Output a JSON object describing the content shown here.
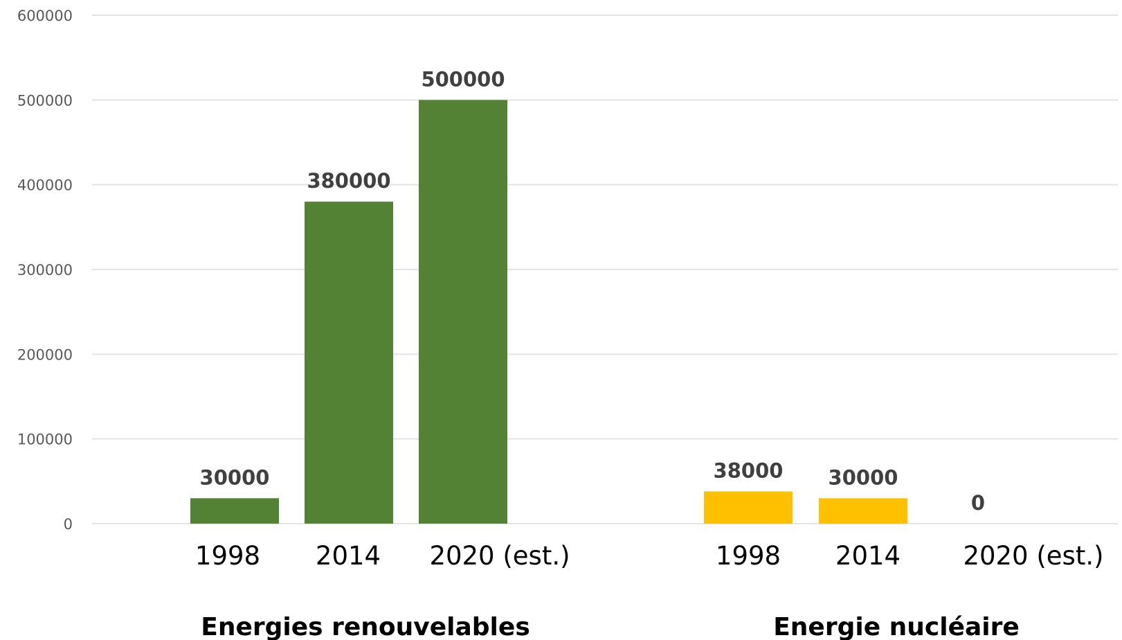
{
  "chart_data": {
    "type": "bar",
    "ylim": [
      0,
      600000
    ],
    "yticks": [
      "0",
      "100000",
      "200000",
      "300000",
      "400000",
      "500000",
      "600000"
    ],
    "grid": true,
    "groups": [
      {
        "name": "Energies renouvelables",
        "color": "#548235",
        "categories": [
          "1998",
          "2014",
          "2020 (est.)"
        ],
        "values": [
          30000,
          380000,
          500000
        ],
        "labels": [
          "30000",
          "380000",
          "500000"
        ]
      },
      {
        "name": "Energie nucléaire",
        "color": "#FFC000",
        "categories": [
          "1998",
          "2014",
          "2020 (est.)"
        ],
        "values": [
          38000,
          30000,
          0
        ],
        "labels": [
          "38000",
          "30000",
          "0"
        ]
      }
    ]
  }
}
